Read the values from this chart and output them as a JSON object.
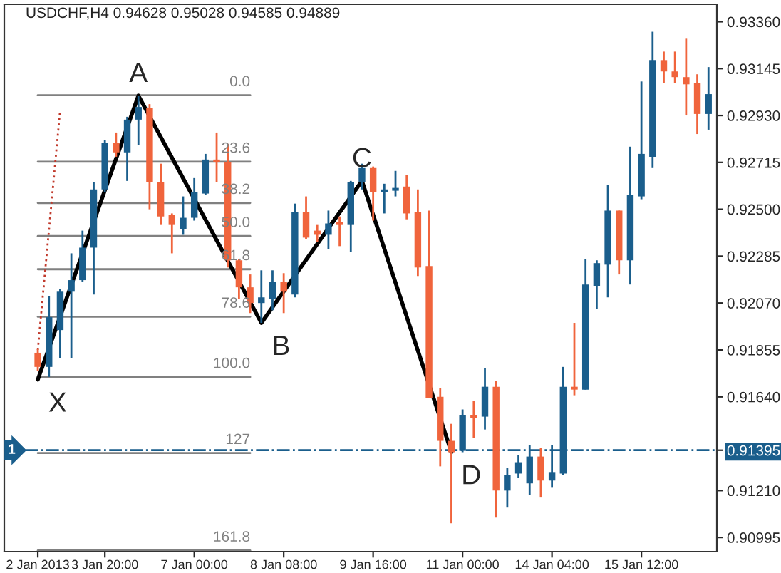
{
  "chart_data": {
    "type": "candlestick",
    "title": "USDCHF,H4 0.94628 0.95028 0.94585 0.94889",
    "categories": [
      "2 Jan 2013",
      null,
      null,
      null,
      null,
      null,
      "3 Jan 20:00",
      null,
      null,
      null,
      null,
      null,
      null,
      null,
      "7 Jan 00:00",
      null,
      null,
      null,
      null,
      null,
      null,
      null,
      "8 Jan 08:00",
      null,
      null,
      null,
      null,
      null,
      null,
      null,
      "9 Jan 16:00",
      null,
      null,
      null,
      null,
      null,
      null,
      null,
      "11 Jan 00:00",
      null,
      null,
      null,
      null,
      null,
      null,
      null,
      "14 Jan 04:00",
      null,
      null,
      null,
      null,
      null,
      null,
      null,
      "15 Jan 12:00",
      null,
      null,
      null,
      null,
      null,
      null
    ],
    "ohlc": [
      [
        0.91842,
        0.91862,
        0.91757,
        0.91777
      ],
      [
        0.91777,
        0.92103,
        0.91731,
        0.92005
      ],
      [
        0.91946,
        0.92136,
        0.91816,
        0.92122
      ],
      [
        0.92122,
        0.92298,
        0.91816,
        0.92175
      ],
      [
        0.92175,
        0.92402,
        0.92168,
        0.92324
      ],
      [
        0.92324,
        0.92624,
        0.92109,
        0.92591
      ],
      [
        0.92591,
        0.92819,
        0.92578,
        0.92806
      ],
      [
        0.92806,
        0.92852,
        0.92741,
        0.92761
      ],
      [
        0.92761,
        0.92924,
        0.9263,
        0.92911
      ],
      [
        0.92911,
        0.93021,
        0.92793,
        0.92969
      ],
      [
        0.92963,
        0.92982,
        0.925,
        0.92624
      ],
      [
        0.92624,
        0.92709,
        0.92428,
        0.92467
      ],
      [
        0.92474,
        0.92481,
        0.92298,
        0.92428
      ],
      [
        0.92409,
        0.92559,
        0.92383,
        0.92461
      ],
      [
        0.92461,
        0.92643,
        0.92448,
        0.92578
      ],
      [
        0.92572,
        0.92754,
        0.92565,
        0.92728
      ],
      [
        0.92728,
        0.92852,
        0.92624,
        0.92715
      ],
      [
        0.92715,
        0.928,
        0.92233,
        0.92266
      ],
      [
        0.92266,
        0.92272,
        0.9209,
        0.92142
      ],
      [
        0.92142,
        0.92201,
        0.92024,
        0.9207
      ],
      [
        0.9207,
        0.9222,
        0.91979,
        0.92096
      ],
      [
        0.9209,
        0.9222,
        0.92037,
        0.92168
      ],
      [
        0.92168,
        0.92207,
        0.92024,
        0.92122
      ],
      [
        0.92109,
        0.92526,
        0.92096,
        0.92487
      ],
      [
        0.92487,
        0.92559,
        0.92363,
        0.9237
      ],
      [
        0.92402,
        0.92428,
        0.9235,
        0.92383
      ],
      [
        0.92383,
        0.92494,
        0.92318,
        0.92435
      ],
      [
        0.92441,
        0.92467,
        0.92331,
        0.92428
      ],
      [
        0.92428,
        0.9263,
        0.92305,
        0.92624
      ],
      [
        0.92624,
        0.92709,
        0.92591,
        0.92689
      ],
      [
        0.92689,
        0.92696,
        0.92448,
        0.92578
      ],
      [
        0.92578,
        0.92617,
        0.92481,
        0.92591
      ],
      [
        0.92585,
        0.92676,
        0.92559,
        0.92598
      ],
      [
        0.92604,
        0.92656,
        0.92454,
        0.92481
      ],
      [
        0.92487,
        0.92591,
        0.92194,
        0.92233
      ],
      [
        0.9224,
        0.92494,
        0.91634,
        0.91634
      ],
      [
        0.9164,
        0.91679,
        0.91321,
        0.91438
      ],
      [
        0.91438,
        0.91516,
        0.9106,
        0.91386
      ],
      [
        0.91392,
        0.91582,
        0.91386,
        0.91555
      ],
      [
        0.91555,
        0.91621,
        0.91451,
        0.91542
      ],
      [
        0.91549,
        0.9177,
        0.9149,
        0.91686
      ],
      [
        0.91686,
        0.91712,
        0.91086,
        0.9121
      ],
      [
        0.9121,
        0.91314,
        0.91132,
        0.91282
      ],
      [
        0.91288,
        0.91373,
        0.91269,
        0.9134
      ],
      [
        0.91243,
        0.91419,
        0.91191,
        0.91366
      ],
      [
        0.91366,
        0.91406,
        0.91178,
        0.91256
      ],
      [
        0.91256,
        0.91419,
        0.91223,
        0.91295
      ],
      [
        0.91288,
        0.91777,
        0.91282,
        0.91686
      ],
      [
        0.91686,
        0.91979,
        0.91647,
        0.91673
      ],
      [
        0.91673,
        0.92272,
        0.91673,
        0.92155
      ],
      [
        0.92149,
        0.92266,
        0.92044,
        0.92253
      ],
      [
        0.92246,
        0.92611,
        0.92096,
        0.92494
      ],
      [
        0.92494,
        0.92494,
        0.92201,
        0.92266
      ],
      [
        0.92266,
        0.92787,
        0.92155,
        0.92565
      ],
      [
        0.92559,
        0.93086,
        0.92546,
        0.92754
      ],
      [
        0.92741,
        0.93314,
        0.92689,
        0.93184
      ],
      [
        0.93184,
        0.93223,
        0.9308,
        0.93132
      ],
      [
        0.93132,
        0.93223,
        0.9308,
        0.93106
      ],
      [
        0.93106,
        0.93282,
        0.9293,
        0.93073
      ],
      [
        0.9308,
        0.93119,
        0.92845,
        0.92937
      ],
      [
        0.92937,
        0.93152,
        0.92865,
        0.93028
      ]
    ],
    "colors": [
      "#f0643c",
      "#1a5e8c",
      "#1a5e8c",
      "#1a5e8c",
      "#1a5e8c",
      "#1a5e8c",
      "#1a5e8c",
      "#f0643c",
      "#1a5e8c",
      "#1a5e8c",
      "#f0643c",
      "#f0643c",
      "#f0643c",
      "#1a5e8c",
      "#1a5e8c",
      "#1a5e8c",
      "#f0643c",
      "#f0643c",
      "#f0643c",
      "#f0643c",
      "#1a5e8c",
      "#1a5e8c",
      "#f0643c",
      "#1a5e8c",
      "#f0643c",
      "#f0643c",
      "#1a5e8c",
      "#f0643c",
      "#1a5e8c",
      "#1a5e8c",
      "#f0643c",
      "#1a5e8c",
      "#1a5e8c",
      "#f0643c",
      "#f0643c",
      "#f0643c",
      "#f0643c",
      "#f0643c",
      "#1a5e8c",
      "#f0643c",
      "#1a5e8c",
      "#f0643c",
      "#1a5e8c",
      "#1a5e8c",
      "#1a5e8c",
      "#f0643c",
      "#1a5e8c",
      "#1a5e8c",
      "#f0643c",
      "#1a5e8c",
      "#1a5e8c",
      "#1a5e8c",
      "#f0643c",
      "#1a5e8c",
      "#1a5e8c",
      "#1a5e8c",
      "#f0643c",
      "#f0643c",
      "#f0643c",
      "#f0643c",
      "#1a5e8c"
    ],
    "series": [
      {
        "type": "line",
        "name": "0.0",
        "color": "#808080",
        "values": [
          0.93023,
          null,
          null,
          null,
          null,
          null,
          null,
          null,
          null,
          null,
          null,
          null,
          null,
          null,
          null,
          null,
          null,
          null,
          null,
          0.93023,
          null,
          null,
          null,
          null,
          null,
          null,
          null,
          null,
          null,
          null,
          null,
          null,
          null,
          null,
          null,
          null,
          null,
          null,
          null,
          null,
          null,
          null,
          null,
          null,
          null,
          null,
          null,
          null,
          null,
          null,
          null,
          null,
          null,
          null,
          null,
          null,
          null,
          null,
          null,
          null,
          null
        ]
      },
      {
        "type": "line",
        "name": "23.6",
        "color": "#808080",
        "values": [
          0.92718,
          null,
          null,
          null,
          null,
          null,
          null,
          null,
          null,
          null,
          null,
          null,
          null,
          null,
          null,
          null,
          null,
          null,
          null,
          0.92718,
          null,
          null,
          null,
          null,
          null,
          null,
          null,
          null,
          null,
          null,
          null,
          null,
          null,
          null,
          null,
          null,
          null,
          null,
          null,
          null,
          null,
          null,
          null,
          null,
          null,
          null,
          null,
          null,
          null,
          null,
          null,
          null,
          null,
          null,
          null,
          null,
          null,
          null,
          null,
          null,
          null
        ]
      },
      {
        "type": "line",
        "name": "38.2",
        "color": "#808080",
        "values": [
          0.92529,
          null,
          null,
          null,
          null,
          null,
          null,
          null,
          null,
          null,
          null,
          null,
          null,
          null,
          null,
          null,
          null,
          null,
          null,
          0.92529,
          null,
          null,
          null,
          null,
          null,
          null,
          null,
          null,
          null,
          null,
          null,
          null,
          null,
          null,
          null,
          null,
          null,
          null,
          null,
          null,
          null,
          null,
          null,
          null,
          null,
          null,
          null,
          null,
          null,
          null,
          null,
          null,
          null,
          null,
          null,
          null,
          null,
          null,
          null,
          null,
          null
        ]
      },
      {
        "type": "line",
        "name": "50.0",
        "color": "#808080",
        "values": [
          0.92377,
          null,
          null,
          null,
          null,
          null,
          null,
          null,
          null,
          null,
          null,
          null,
          null,
          null,
          null,
          null,
          null,
          null,
          null,
          0.92377,
          null,
          null,
          null,
          null,
          null,
          null,
          null,
          null,
          null,
          null,
          null,
          null,
          null,
          null,
          null,
          null,
          null,
          null,
          null,
          null,
          null,
          null,
          null,
          null,
          null,
          null,
          null,
          null,
          null,
          null,
          null,
          null,
          null,
          null,
          null,
          null,
          null,
          null,
          null,
          null,
          null
        ]
      },
      {
        "type": "line",
        "name": "61.8",
        "color": "#808080",
        "values": [
          0.92225,
          null,
          null,
          null,
          null,
          null,
          null,
          null,
          null,
          null,
          null,
          null,
          null,
          null,
          null,
          null,
          null,
          null,
          null,
          0.92225,
          null,
          null,
          null,
          null,
          null,
          null,
          null,
          null,
          null,
          null,
          null,
          null,
          null,
          null,
          null,
          null,
          null,
          null,
          null,
          null,
          null,
          null,
          null,
          null,
          null,
          null,
          null,
          null,
          null,
          null,
          null,
          null,
          null,
          null,
          null,
          null,
          null,
          null,
          null,
          null,
          null
        ]
      },
      {
        "type": "line",
        "name": "78.6",
        "color": "#808080",
        "values": [
          0.92007,
          null,
          null,
          null,
          null,
          null,
          null,
          null,
          null,
          null,
          null,
          null,
          null,
          null,
          null,
          null,
          null,
          null,
          null,
          0.92007,
          null,
          null,
          null,
          null,
          null,
          null,
          null,
          null,
          null,
          null,
          null,
          null,
          null,
          null,
          null,
          null,
          null,
          null,
          null,
          null,
          null,
          null,
          null,
          null,
          null,
          null,
          null,
          null,
          null,
          null,
          null,
          null,
          null,
          null,
          null,
          null,
          null,
          null,
          null,
          null,
          null
        ]
      },
      {
        "type": "line",
        "name": "100.0",
        "color": "#808080",
        "values": [
          0.91731,
          null,
          null,
          null,
          null,
          null,
          null,
          null,
          null,
          null,
          null,
          null,
          null,
          null,
          null,
          null,
          null,
          null,
          null,
          0.91731,
          null,
          null,
          null,
          null,
          null,
          null,
          null,
          null,
          null,
          null,
          null,
          null,
          null,
          null,
          null,
          null,
          null,
          null,
          null,
          null,
          null,
          null,
          null,
          null,
          null,
          null,
          null,
          null,
          null,
          null,
          null,
          null,
          null,
          null,
          null,
          null,
          null,
          null,
          null,
          null,
          null
        ]
      },
      {
        "type": "line",
        "name": "127",
        "color": "#808080",
        "values": [
          0.91382,
          null,
          null,
          null,
          null,
          null,
          null,
          null,
          null,
          null,
          null,
          null,
          null,
          null,
          null,
          null,
          null,
          null,
          null,
          0.91382,
          null,
          null,
          null,
          null,
          null,
          null,
          null,
          null,
          null,
          null,
          null,
          null,
          null,
          null,
          null,
          null,
          null,
          null,
          null,
          null,
          null,
          null,
          null,
          null,
          null,
          null,
          null,
          null,
          null,
          null,
          null,
          null,
          null,
          null,
          null,
          null,
          null,
          null,
          null,
          null,
          null
        ]
      },
      {
        "type": "line",
        "name": "161.8",
        "color": "#808080",
        "values": [
          0.90935,
          null,
          null,
          null,
          null,
          null,
          null,
          null,
          null,
          null,
          null,
          null,
          null,
          null,
          null,
          null,
          null,
          null,
          null,
          0.90935,
          null,
          null,
          null,
          null,
          null,
          null,
          null,
          null,
          null,
          null,
          null,
          null,
          null,
          null,
          null,
          null,
          null,
          null,
          null,
          null,
          null,
          null,
          null,
          null,
          null,
          null,
          null,
          null,
          null,
          null,
          null,
          null,
          null,
          null,
          null,
          null,
          null,
          null,
          null,
          null,
          null
        ]
      },
      {
        "type": "line",
        "color": "#c0392b",
        "line_style": "dotted",
        "values": [
          0.91855,
          null,
          0.92956,
          null,
          null,
          null,
          null,
          null,
          null,
          null,
          null,
          null,
          null,
          null,
          null,
          null,
          null,
          null,
          null,
          null,
          null,
          null,
          null,
          null,
          null,
          null,
          null,
          null,
          null,
          null,
          null,
          null,
          null,
          null,
          null,
          null,
          null,
          null,
          null,
          null,
          null,
          null,
          null,
          null,
          null,
          null,
          null,
          null,
          null,
          null,
          null,
          null,
          null,
          null,
          null,
          null,
          null,
          null,
          null,
          null,
          null
        ]
      },
      {
        "type": "line",
        "color": "#000000",
        "values": [
          0.91719,
          null,
          null,
          null,
          null,
          null,
          null,
          null,
          null,
          0.93021,
          null,
          null,
          null,
          null,
          null,
          null,
          null,
          null,
          null,
          null,
          0.91979,
          null,
          null,
          null,
          null,
          null,
          null,
          null,
          null,
          0.9263,
          null,
          null,
          null,
          null,
          null,
          null,
          null,
          0.91386,
          null,
          null,
          null,
          null,
          null,
          null,
          null,
          null,
          null,
          null,
          null,
          null,
          null,
          null,
          null,
          null,
          null,
          null,
          null,
          null,
          null,
          null,
          null
        ]
      }
    ],
    "annotations": [
      "X",
      "A",
      "B",
      "C",
      "D"
    ],
    "ref_lines": [
      {
        "axis": "y",
        "value": 0.91395,
        "label": "1",
        "color": "#1a5e8c",
        "line_style": "dashdot"
      }
    ],
    "ylim": [
      0.9093,
      0.9344
    ],
    "yticks": [
      {
        "value": 0.9336,
        "label": "0.93360"
      },
      {
        "value": 0.93145,
        "label": "0.93145"
      },
      {
        "value": 0.9293,
        "label": "0.92930"
      },
      {
        "value": 0.92715,
        "label": "0.92715"
      },
      {
        "value": 0.925,
        "label": "0.92500"
      },
      {
        "value": 0.92285,
        "label": "0.92285"
      },
      {
        "value": 0.9207,
        "label": "0.92070"
      },
      {
        "value": 0.91855,
        "label": "0.91855"
      },
      {
        "value": 0.9164,
        "label": "0.91640"
      },
      {
        "value": 0.91395,
        "label": "0.91395"
      },
      {
        "value": 0.9121,
        "label": "0.91210"
      },
      {
        "value": 0.90995,
        "label": "0.90995"
      }
    ],
    "grid": false,
    "legend": false
  }
}
